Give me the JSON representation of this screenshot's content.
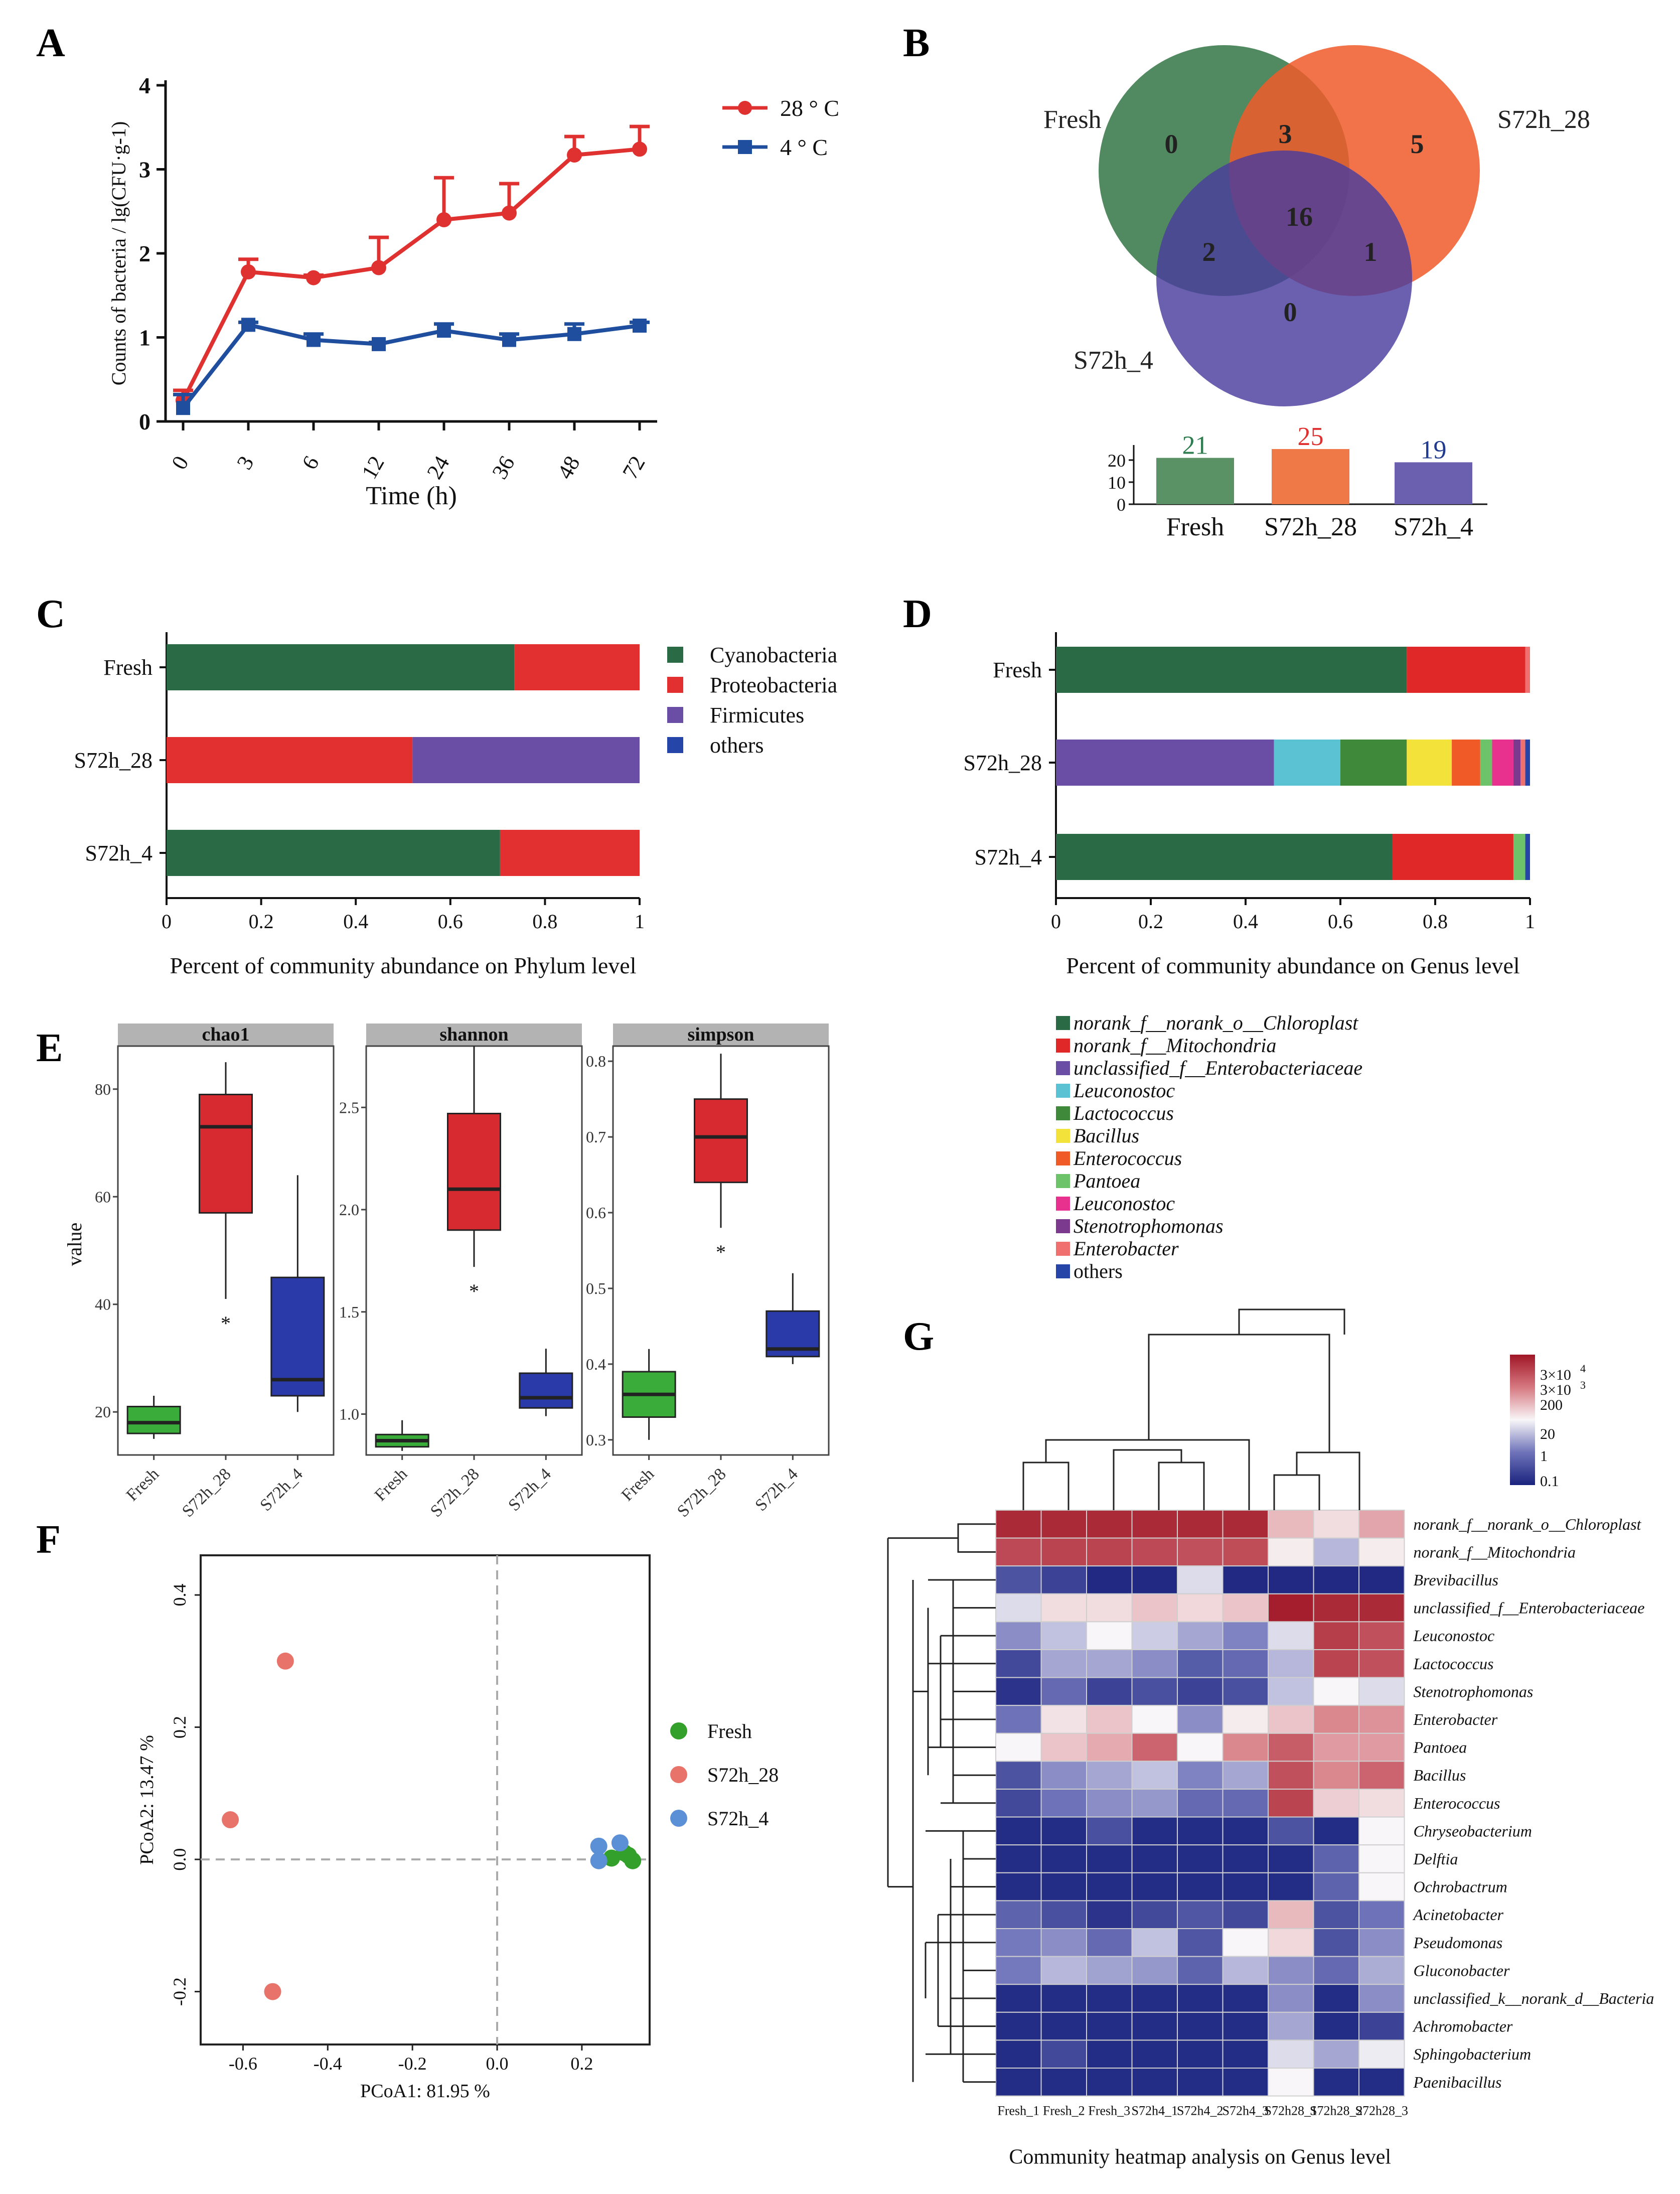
{
  "panel_labels": {
    "A": "A",
    "B": "B",
    "C": "C",
    "D": "D",
    "E": "E",
    "F": "F",
    "G": "G"
  },
  "colors": {
    "red": "#e03131",
    "blue": "#1f4e9e",
    "green": "#3b7a57",
    "venn_fresh": "#3e7d4f",
    "venn_28": "#f05a2a",
    "venn_4": "#4a3d9e"
  },
  "chart_data": [
    {
      "id": "A",
      "type": "line",
      "xlabel": "Time (h)",
      "ylabel": "Counts of bacteria / lg(CFU·g-1)",
      "categories": [
        "0",
        "3",
        "6",
        "12",
        "24",
        "36",
        "48",
        "72"
      ],
      "ylim": [
        0,
        4
      ],
      "yticks": [
        "0",
        "1",
        "2",
        "3",
        "4"
      ],
      "series": [
        {
          "name": "28 ° C",
          "color": "#e03131",
          "values": [
            0.25,
            1.78,
            1.71,
            1.83,
            2.4,
            2.48,
            3.17,
            3.24
          ],
          "err": [
            0.12,
            0.15,
            0.03,
            0.36,
            0.5,
            0.35,
            0.22,
            0.27
          ]
        },
        {
          "name": "4 ° C",
          "color": "#1f4e9e",
          "values": [
            0.16,
            1.15,
            0.97,
            0.92,
            1.08,
            0.97,
            1.04,
            1.14
          ],
          "err": [
            0.16,
            0.03,
            0.07,
            0.02,
            0.08,
            0.07,
            0.12,
            0.04
          ]
        }
      ]
    },
    {
      "id": "B",
      "type": "venn",
      "sets": [
        "Fresh",
        "S72h_28",
        "S72h_4"
      ],
      "regions": {
        "fresh_only": "0",
        "s28_only": "5",
        "s4_only": "0",
        "fresh_s28": "3",
        "fresh_s4": "2",
        "s28_s4": "1",
        "all": "16"
      },
      "bars": {
        "categories": [
          "Fresh",
          "S72h_28",
          "S72h_4"
        ],
        "values": [
          21,
          25,
          19
        ],
        "labels": [
          "21",
          "25",
          "19"
        ],
        "label_colors": [
          "#2e7d4f",
          "#e03131",
          "#1f3a8e"
        ],
        "colors": [
          "#5a9265",
          "#f07a47",
          "#6b5fb0"
        ],
        "ylim": [
          0,
          25
        ],
        "yticks": [
          "0",
          "10",
          "20"
        ]
      }
    },
    {
      "id": "C",
      "type": "bar",
      "orientation": "horizontal",
      "stacked": true,
      "xlabel": "Percent of community abundance on Phylum level",
      "categories": [
        "Fresh",
        "S72h_28",
        "S72h_4"
      ],
      "xticks": [
        "0",
        "0.2",
        "0.4",
        "0.6",
        "0.8",
        "1"
      ],
      "series": [
        {
          "name": "Cyanobacteria",
          "color": "#2a6b45",
          "values": [
            0.735,
            0,
            0.705
          ]
        },
        {
          "name": "Proteobacteria",
          "color": "#e23030",
          "values": [
            0.265,
            0.52,
            0.295
          ]
        },
        {
          "name": "Firmicutes",
          "color": "#6a4ea6",
          "values": [
            0,
            0.48,
            0
          ]
        },
        {
          "name": "others",
          "color": "#2545a8",
          "values": [
            0,
            0,
            0
          ]
        }
      ]
    },
    {
      "id": "D",
      "type": "bar",
      "orientation": "horizontal",
      "stacked": true,
      "xlabel": "Percent of community abundance on Genus level",
      "categories": [
        "Fresh",
        "S72h_28",
        "S72h_4"
      ],
      "xticks": [
        "0",
        "0.2",
        "0.4",
        "0.6",
        "0.8",
        "1"
      ],
      "series": [
        {
          "name": "norank_f__norank_o__Chloroplast",
          "color": "#2a6b45",
          "values": [
            0.74,
            0,
            0.71
          ]
        },
        {
          "name": "norank_f__Mitochondria",
          "color": "#e02828",
          "values": [
            0.25,
            0,
            0.255
          ]
        },
        {
          "name": "unclassified_f__Enterobacteriaceae",
          "color": "#6a4ea6",
          "values": [
            0,
            0.46,
            0
          ]
        },
        {
          "name": "Leuconostoc",
          "color": "#5bc2d4",
          "values": [
            0,
            0.14,
            0
          ]
        },
        {
          "name": "Lactococcus",
          "color": "#3f8a3a",
          "values": [
            0,
            0.14,
            0
          ]
        },
        {
          "name": "Bacillus",
          "color": "#f2e23a",
          "values": [
            0,
            0.095,
            0
          ]
        },
        {
          "name": "Enterococcus",
          "color": "#ef5a26",
          "values": [
            0,
            0.06,
            0
          ]
        },
        {
          "name": "Pantoea",
          "color": "#6cc36a",
          "values": [
            0,
            0.025,
            0.025
          ]
        },
        {
          "name": "Leuconostoc",
          "color": "#e8308e",
          "values": [
            0,
            0.045,
            0
          ]
        },
        {
          "name": "Stenotrophomonas",
          "color": "#7b3a8e",
          "values": [
            0,
            0.015,
            0
          ]
        },
        {
          "name": "Enterobacter",
          "color": "#f07070",
          "values": [
            0.01,
            0.01,
            0
          ]
        },
        {
          "name": "others",
          "color": "#2545a8",
          "values": [
            0,
            0.01,
            0.01
          ]
        }
      ]
    },
    {
      "id": "E",
      "type": "box",
      "ylabel": "value",
      "groups": [
        "Fresh",
        "S72h_28",
        "S72h_4"
      ],
      "group_colors": [
        "#3aac3a",
        "#d62a30",
        "#2a3aa8"
      ],
      "panels": [
        {
          "title": "chao1",
          "yticks": [
            "20",
            "40",
            "60",
            "80"
          ],
          "ylim": [
            12,
            88
          ],
          "star": "*",
          "boxes": [
            {
              "min": 15,
              "q1": 16,
              "med": 18,
              "q3": 21,
              "max": 23
            },
            {
              "min": 41,
              "q1": 57,
              "med": 73,
              "q3": 79,
              "max": 85
            },
            {
              "min": 20,
              "q1": 23,
              "med": 26,
              "q3": 45,
              "max": 64
            }
          ]
        },
        {
          "title": "shannon",
          "yticks": [
            "1.0",
            "1.5",
            "2.0",
            "2.5"
          ],
          "ylim": [
            0.8,
            2.8
          ],
          "star": "*",
          "boxes": [
            {
              "min": 0.82,
              "q1": 0.84,
              "med": 0.87,
              "q3": 0.9,
              "max": 0.97
            },
            {
              "min": 1.72,
              "q1": 1.9,
              "med": 2.1,
              "q3": 2.47,
              "max": 2.8
            },
            {
              "min": 0.99,
              "q1": 1.03,
              "med": 1.08,
              "q3": 1.2,
              "max": 1.32
            }
          ]
        },
        {
          "title": "simpson",
          "yticks": [
            "0.3",
            "0.4",
            "0.5",
            "0.6",
            "0.7",
            "0.8"
          ],
          "ylim": [
            0.28,
            0.82
          ],
          "star": "*",
          "boxes": [
            {
              "min": 0.3,
              "q1": 0.33,
              "med": 0.36,
              "q3": 0.39,
              "max": 0.42
            },
            {
              "min": 0.58,
              "q1": 0.64,
              "med": 0.7,
              "q3": 0.75,
              "max": 0.81
            },
            {
              "min": 0.4,
              "q1": 0.41,
              "med": 0.42,
              "q3": 0.47,
              "max": 0.52
            }
          ]
        }
      ]
    },
    {
      "id": "F",
      "type": "scatter",
      "xlabel": "PCoA1:  81.95 %",
      "ylabel": "PCoA2:  13.47 %",
      "xlim": [
        -0.7,
        0.36
      ],
      "ylim": [
        -0.28,
        0.46
      ],
      "xticks": [
        "-0.6",
        "-0.4",
        "-0.2",
        "0.0",
        "0.2"
      ],
      "yticks": [
        "-0.2",
        "0.0",
        "0.2",
        "0.4"
      ],
      "series": [
        {
          "name": "Fresh",
          "color": "#33a02c",
          "x": [
            0.27,
            0.31,
            0.3,
            0.32
          ],
          "y": [
            0.002,
            0.006,
            0.01,
            -0.002
          ]
        },
        {
          "name": "S72h_28",
          "color": "#e8736a",
          "x": [
            -0.5,
            -0.63,
            -0.53
          ],
          "y": [
            0.3,
            0.06,
            -0.2
          ]
        },
        {
          "name": "S72h_4",
          "color": "#5b8fd6",
          "x": [
            0.24,
            0.29,
            0.24
          ],
          "y": [
            0.02,
            0.025,
            -0.002
          ]
        }
      ]
    },
    {
      "id": "G",
      "type": "heatmap",
      "xlabel": "Community heatmap analysis on Genus level",
      "columns": [
        "Fresh_1",
        "Fresh_2",
        "Fresh_3",
        "S72h4_1",
        "S72h4_2",
        "S72h4_3",
        "S72h28_1",
        "S72h28_2",
        "S72h28_3"
      ],
      "rows": [
        "norank_f__norank_o__Chloroplast",
        "norank_f__Mitochondria",
        "Brevibacillus",
        "unclassified_f__Enterobacteriaceae",
        "Leuconostoc",
        "Lactococcus",
        "Stenotrophomonas",
        "Enterobacter",
        "Pantoea",
        "Bacillus",
        "Enterococcus",
        "Chryseobacterium",
        "Delftia",
        "Ochrobactrum",
        "Acinetobacter",
        "Pseudomonas",
        "Gluconobacter",
        "unclassified_k__norank_d__Bacteria",
        "Achromobacter",
        "Sphingobacterium",
        "Paenibacillus"
      ],
      "legend_labels": [
        "3×10",
        "3×10",
        "200",
        "20",
        "1",
        "0.1"
      ],
      "legend_sup": "4",
      "legend_sup2": "3",
      "values": [
        [
          0.95,
          0.95,
          0.95,
          0.95,
          0.95,
          0.95,
          0.62,
          0.55,
          0.66
        ],
        [
          0.87,
          0.88,
          0.88,
          0.87,
          0.85,
          0.86,
          0.52,
          0.38,
          0.52
        ],
        [
          0.15,
          0.1,
          0.02,
          0.02,
          0.45,
          0.02,
          0.02,
          0.02,
          0.02
        ],
        [
          0.45,
          0.55,
          0.55,
          0.6,
          0.56,
          0.6,
          0.98,
          0.95,
          0.95
        ],
        [
          0.3,
          0.4,
          0.5,
          0.42,
          0.35,
          0.28,
          0.45,
          0.9,
          0.85
        ],
        [
          0.12,
          0.35,
          0.35,
          0.3,
          0.18,
          0.22,
          0.38,
          0.88,
          0.85
        ],
        [
          0.05,
          0.22,
          0.1,
          0.14,
          0.1,
          0.14,
          0.4,
          0.5,
          0.45
        ],
        [
          0.25,
          0.54,
          0.6,
          0.5,
          0.3,
          0.52,
          0.6,
          0.72,
          0.7
        ],
        [
          0.5,
          0.6,
          0.65,
          0.8,
          0.5,
          0.72,
          0.82,
          0.68,
          0.68
        ],
        [
          0.15,
          0.3,
          0.35,
          0.4,
          0.28,
          0.35,
          0.85,
          0.72,
          0.8
        ],
        [
          0.12,
          0.25,
          0.3,
          0.32,
          0.22,
          0.22,
          0.88,
          0.58,
          0.55
        ],
        [
          0.03,
          0.03,
          0.14,
          0.03,
          0.03,
          0.03,
          0.15,
          0.03,
          0.5
        ],
        [
          0.03,
          0.03,
          0.03,
          0.03,
          0.03,
          0.03,
          0.03,
          0.2,
          0.5
        ],
        [
          0.03,
          0.03,
          0.03,
          0.03,
          0.03,
          0.03,
          0.03,
          0.2,
          0.5
        ],
        [
          0.2,
          0.14,
          0.05,
          0.12,
          0.16,
          0.12,
          0.62,
          0.15,
          0.25
        ],
        [
          0.26,
          0.3,
          0.22,
          0.4,
          0.16,
          0.5,
          0.56,
          0.15,
          0.3
        ],
        [
          0.26,
          0.38,
          0.34,
          0.32,
          0.2,
          0.38,
          0.3,
          0.22,
          0.36
        ],
        [
          0.03,
          0.03,
          0.03,
          0.03,
          0.03,
          0.03,
          0.3,
          0.03,
          0.3
        ],
        [
          0.03,
          0.03,
          0.03,
          0.03,
          0.03,
          0.03,
          0.35,
          0.03,
          0.1
        ],
        [
          0.03,
          0.12,
          0.03,
          0.03,
          0.03,
          0.03,
          0.45,
          0.35,
          0.48
        ],
        [
          0.03,
          0.03,
          0.03,
          0.03,
          0.03,
          0.03,
          0.5,
          0.03,
          0.03
        ]
      ]
    }
  ]
}
